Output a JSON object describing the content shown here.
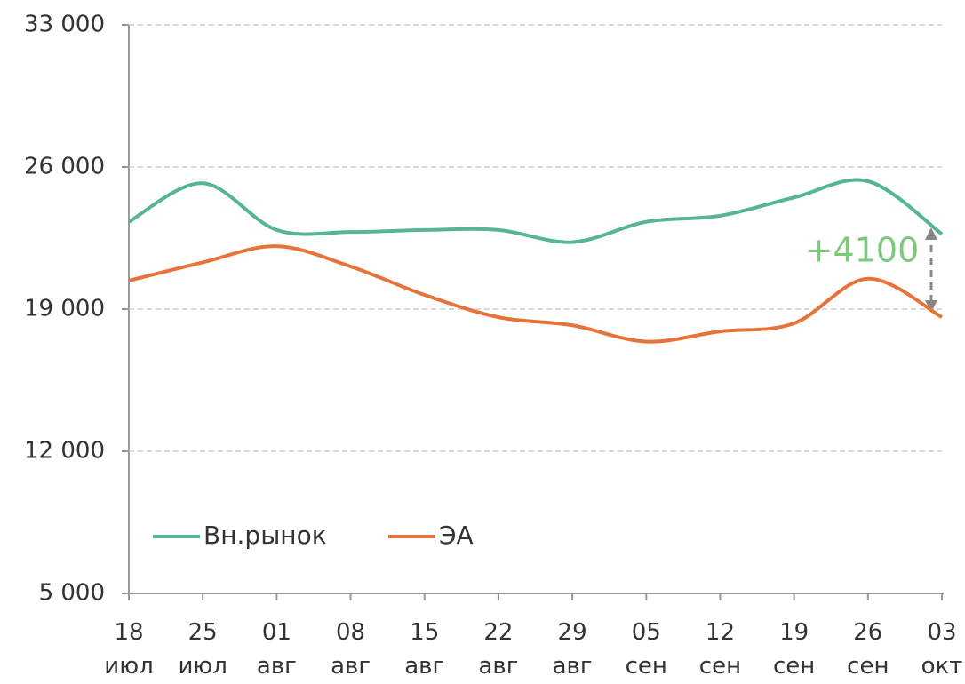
{
  "chart_data": {
    "type": "line",
    "categories": [
      "18\nиюл",
      "25\nиюл",
      "01\nавг",
      "08\nавг",
      "15\nавг",
      "22\nавг",
      "29\nавг",
      "05\nсен",
      "12\nсен",
      "19\nсен",
      "26\nсен",
      "03\nокт"
    ],
    "series": [
      {
        "name": "Вн.рынок",
        "color": "#55b594",
        "values": [
          23300,
          25200,
          22900,
          22800,
          22900,
          22900,
          22300,
          23300,
          23600,
          24500,
          25300,
          22700
        ]
      },
      {
        "name": "ЭА",
        "color": "#e8733a",
        "values": [
          20400,
          21300,
          22100,
          21100,
          19700,
          18600,
          18200,
          17400,
          17900,
          18300,
          20500,
          18600
        ]
      }
    ],
    "ylim": [
      5000,
      33000
    ],
    "yticks": [
      {
        "value": 5000,
        "label": "5 000"
      },
      {
        "value": 12000,
        "label": "12 000"
      },
      {
        "value": 19000,
        "label": "19 000"
      },
      {
        "value": 26000,
        "label": "26 000"
      },
      {
        "value": 33000,
        "label": "33 000"
      }
    ],
    "grid": true,
    "legend": "bottom-left",
    "annotation": "+4100"
  }
}
